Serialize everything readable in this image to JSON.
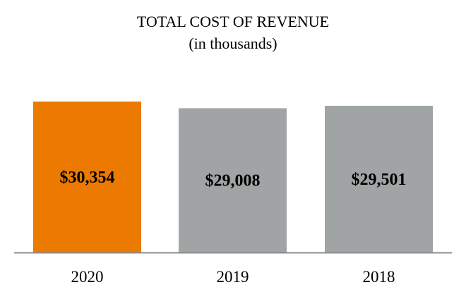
{
  "chart_data": {
    "type": "bar",
    "title": "TOTAL COST OF REVENUE",
    "subtitle": "(in thousands)",
    "categories": [
      "2020",
      "2019",
      "2018"
    ],
    "values": [
      30354,
      29008,
      29501
    ],
    "data_labels": [
      "$30,354",
      "$29,008",
      "$29,501"
    ],
    "colors": [
      "#EC7A00",
      "#A0A4A4",
      "#A0A4A4"
    ],
    "axis_color": "#8C8C8C",
    "ylim": [
      0,
      30354
    ],
    "grid": false,
    "legend": "none",
    "xlabel": "",
    "ylabel": ""
  }
}
